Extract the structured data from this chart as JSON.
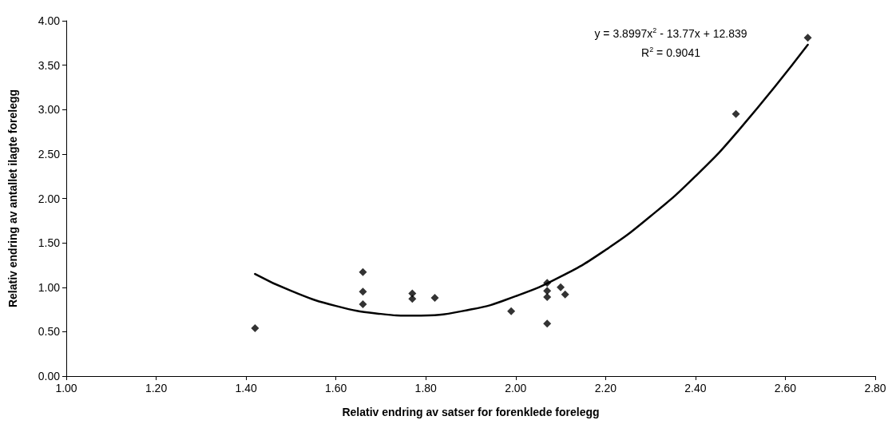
{
  "chart_data": {
    "type": "scatter",
    "xlabel": "Relativ endring av satser for forenklede forelegg",
    "ylabel": "Relativ endring av antallet ilagte forelegg",
    "annotations": [
      "y = 3.8997x$^{2}$ - 13.77x + 12.839",
      "R$^{2}$ = 0.9041"
    ],
    "marker": "diamond",
    "grid": false,
    "xlim": [
      1,
      2.8
    ],
    "xticks": [
      {
        "value": 1,
        "label": "1.00"
      },
      {
        "value": 1.2,
        "label": "1.20"
      },
      {
        "value": 1.4,
        "label": "1.40"
      },
      {
        "value": 1.6,
        "label": "1.60"
      },
      {
        "value": 1.8,
        "label": "1.80"
      },
      {
        "value": 2,
        "label": "2.00"
      },
      {
        "value": 2.2,
        "label": "2.20"
      },
      {
        "value": 2.4,
        "label": "2.40"
      },
      {
        "value": 2.6,
        "label": "2.60"
      },
      {
        "value": 2.8,
        "label": "2.80"
      }
    ],
    "ylim": [
      0,
      4
    ],
    "yticks": [
      {
        "value": 0,
        "label": "0.00"
      },
      {
        "value": 0.5,
        "label": "0.50"
      },
      {
        "value": 1,
        "label": "1.00"
      },
      {
        "value": 1.5,
        "label": "1.50"
      },
      {
        "value": 2,
        "label": "2.00"
      },
      {
        "value": 2.5,
        "label": "2.50"
      },
      {
        "value": 3,
        "label": "3.00"
      },
      {
        "value": 3.5,
        "label": "3.50"
      },
      {
        "value": 4,
        "label": "4.00"
      }
    ],
    "series": [
      {
        "color": "#000000",
        "x": [
          1.42,
          1.66,
          1.66,
          1.66,
          1.77,
          1.77,
          1.82,
          1.99,
          2.07,
          2.07,
          2.07,
          2.07,
          2.1,
          2.11,
          2.49,
          2.65
        ],
        "values": [
          0.54,
          1.17,
          0.95,
          0.81,
          0.93,
          0.87,
          0.88,
          0.73,
          1.05,
          0.96,
          0.89,
          0.59,
          1.0,
          0.92,
          2.95,
          3.81
        ]
      },
      {
        "type": "line",
        "color": "#000000",
        "marker": "none",
        "line_style": "solid",
        "x": [
          1.42,
          1.5,
          1.6,
          1.7,
          1.77,
          1.9,
          2.0,
          2.1,
          2.2,
          2.3,
          2.4,
          2.5,
          2.65
        ],
        "values": [
          1.15,
          0.96,
          0.79,
          0.7,
          0.68,
          0.75,
          0.9,
          1.12,
          1.42,
          1.8,
          2.25,
          2.79,
          3.73
        ]
      }
    ]
  }
}
